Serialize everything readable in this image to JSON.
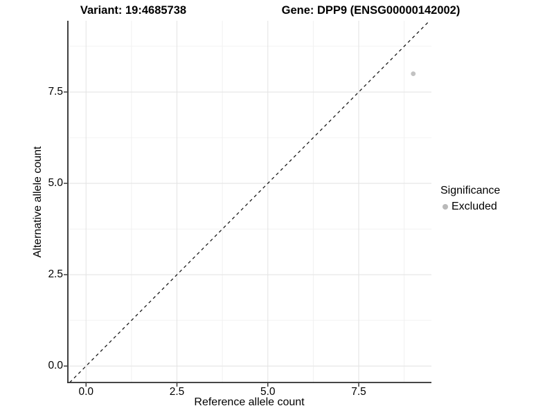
{
  "titles": {
    "left": "Variant: 19:4685738",
    "right": "Gene: DPP9 (ENSG00000142002)"
  },
  "legend": {
    "title": "Significance",
    "items": [
      {
        "label": "Excluded",
        "color": "#b9b9b9"
      }
    ]
  },
  "chart_data": {
    "type": "scatter",
    "title": "Variant: 19:4685738   Gene: DPP9 (ENSG00000142002)",
    "xlabel": "Reference allele count",
    "ylabel": "Alternative allele count",
    "xlim": [
      -0.5,
      9.5
    ],
    "ylim": [
      -0.45,
      9.45
    ],
    "x_ticks": [
      0.0,
      2.5,
      5.0,
      7.5
    ],
    "y_ticks": [
      0.0,
      2.5,
      5.0,
      7.5
    ],
    "x_minor": [
      1.25,
      3.75,
      6.25,
      8.75
    ],
    "y_minor": [
      1.25,
      3.75,
      6.25,
      8.75
    ],
    "grid": true,
    "legend_position": "right",
    "series": [
      {
        "name": "Excluded",
        "color": "#c2c2c2",
        "points": [
          {
            "x": 9,
            "y": 8
          }
        ]
      }
    ],
    "reference_line": {
      "kind": "identity",
      "slope": 1,
      "intercept": 0,
      "style": "dashed",
      "color": "#1a1a1a"
    },
    "colors": {
      "grid_major": "#e4e4e4",
      "grid_minor": "#f0f0f0",
      "axis": "#2b2b2b",
      "background": "#ffffff"
    }
  }
}
